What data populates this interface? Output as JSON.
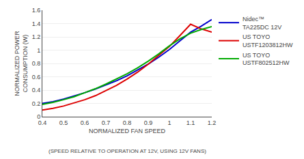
{
  "chart_data": {
    "type": "line",
    "xlabel": "NORMALIZED FAN SPEED",
    "ylabel": "NORMALIZED POWER\nCONSUMPTION (W)",
    "annotations": [
      "(SPEED RELATIVE TO OPERATION AT 12V, USING 12V FANS)"
    ],
    "x": [
      0.4,
      0.45,
      0.5,
      0.55,
      0.6,
      0.65,
      0.7,
      0.75,
      0.8,
      0.85,
      0.9,
      0.95,
      1.0,
      1.05,
      1.1,
      1.15,
      1.2
    ],
    "series": [
      {
        "name": "Nidec™\nTA225DC 12V",
        "color": "#0000CC",
        "values": [
          0.2,
          0.225,
          0.265,
          0.31,
          0.36,
          0.415,
          0.475,
          0.54,
          0.615,
          0.7,
          0.79,
          0.895,
          1.01,
          1.14,
          1.27,
          1.36,
          1.46
        ]
      },
      {
        "name": "US TOYO\nUSTF1203812HW",
        "color": "#DD0000",
        "values": [
          0.1,
          0.125,
          0.16,
          0.205,
          0.255,
          0.315,
          0.39,
          0.47,
          0.565,
          0.67,
          0.79,
          0.92,
          1.055,
          1.22,
          1.39,
          1.32,
          1.27
        ]
      },
      {
        "name": "US TOYO\nUSTF802512HW",
        "color": "#00AA00",
        "values": [
          0.185,
          0.215,
          0.255,
          0.3,
          0.36,
          0.42,
          0.49,
          0.565,
          0.645,
          0.735,
          0.835,
          0.945,
          1.065,
          1.17,
          1.255,
          1.31,
          1.355
        ]
      }
    ],
    "xlim": [
      0.4,
      1.2
    ],
    "ylim": [
      0,
      1.6
    ],
    "xticks": [
      0.4,
      0.5,
      0.6,
      0.7,
      0.8,
      0.9,
      1,
      1.1,
      1.2
    ],
    "yticks": [
      0,
      0.2,
      0.4,
      0.6,
      0.8,
      1,
      1.2,
      1.4,
      1.6
    ],
    "grid": "y",
    "legend": "right"
  }
}
